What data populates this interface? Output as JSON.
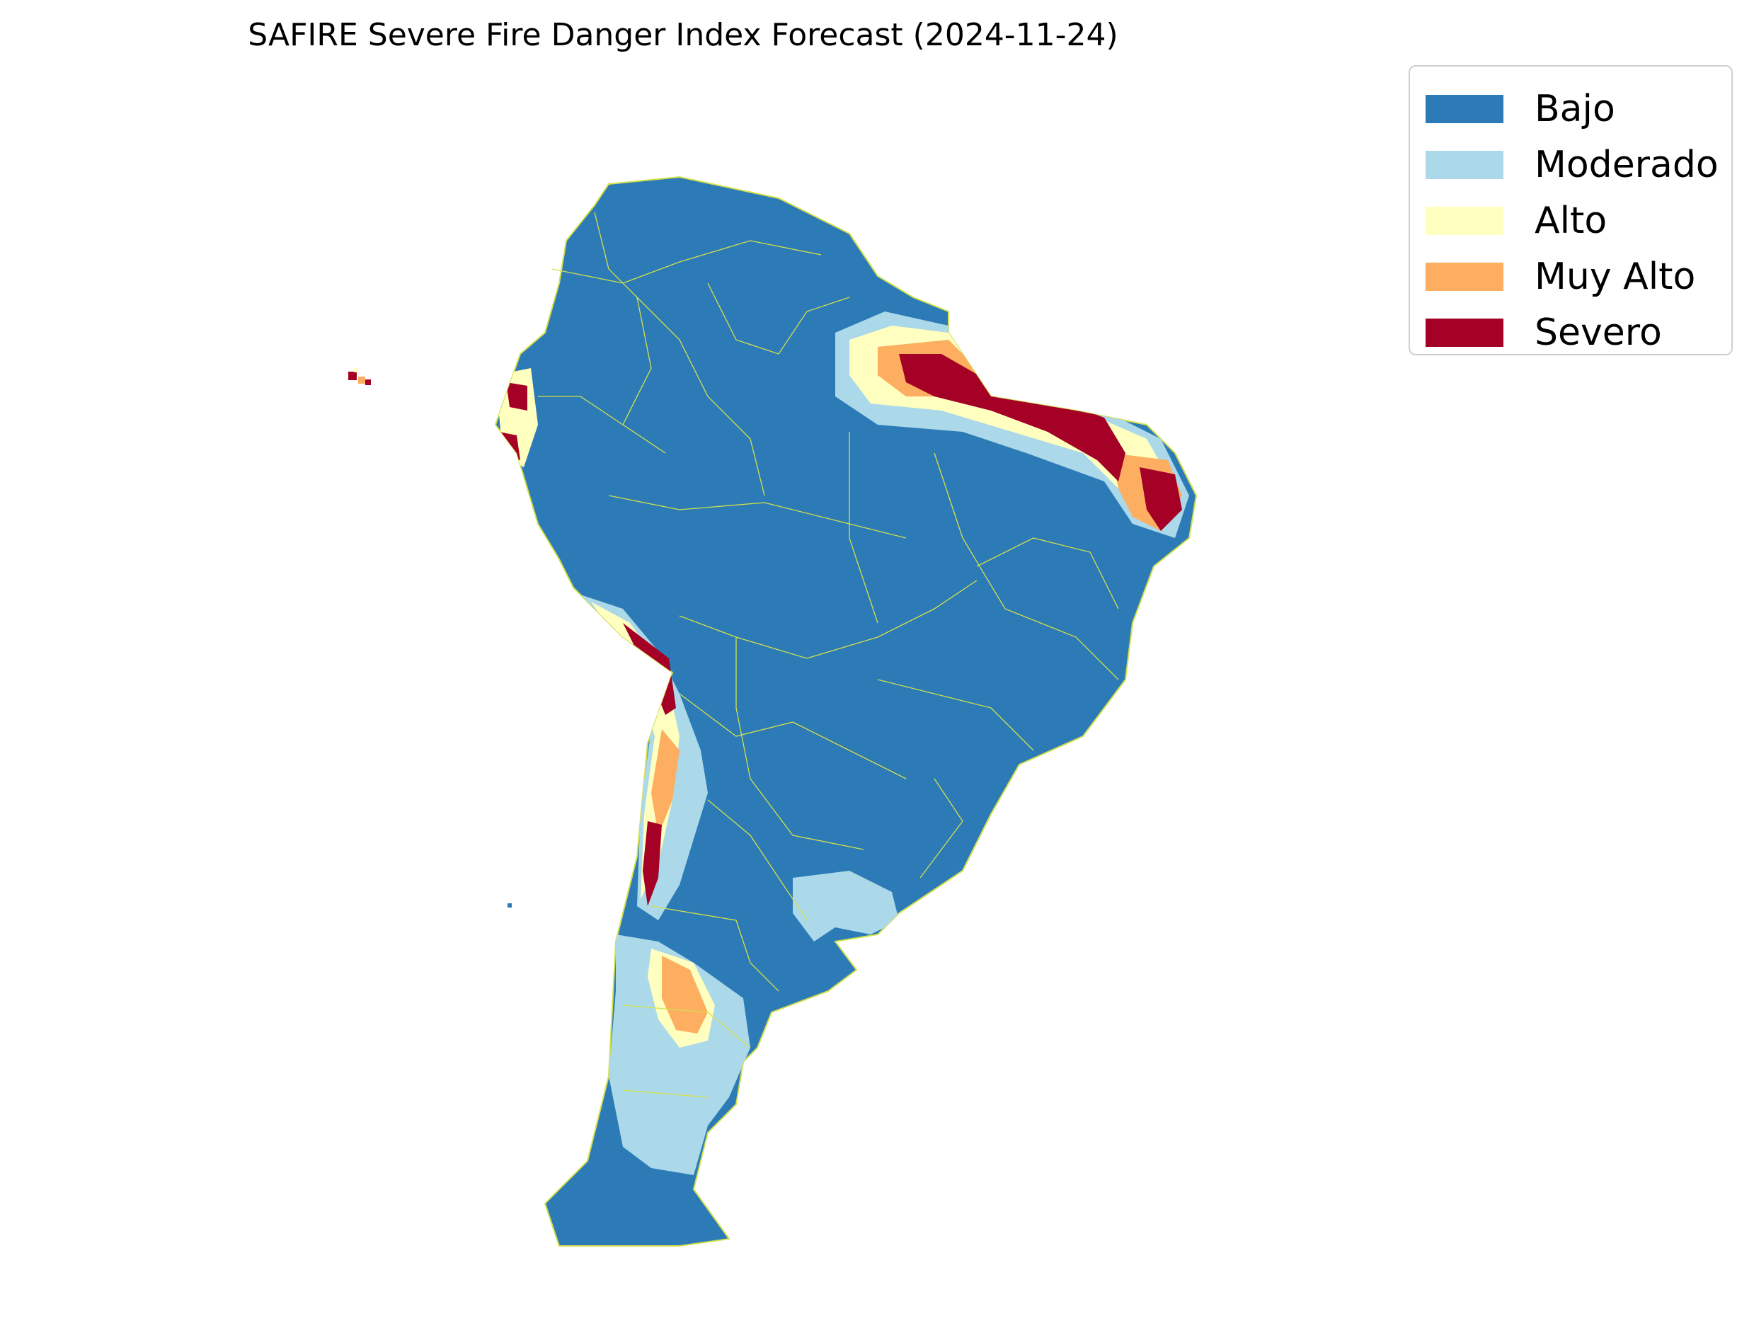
{
  "title": "SAFIRE Severe Fire Danger Index Forecast (2024-11-24)",
  "legend": [
    {
      "label": "Bajo",
      "color": "#2c7bb6"
    },
    {
      "label": "Moderado",
      "color": "#abd9e9"
    },
    {
      "label": "Alto",
      "color": "#ffffbf"
    },
    {
      "label": "Muy Alto",
      "color": "#fdae61"
    },
    {
      "label": "Severo",
      "color": "#a50026"
    }
  ],
  "map": {
    "region": "South America",
    "border_color": "#d4e04a"
  }
}
